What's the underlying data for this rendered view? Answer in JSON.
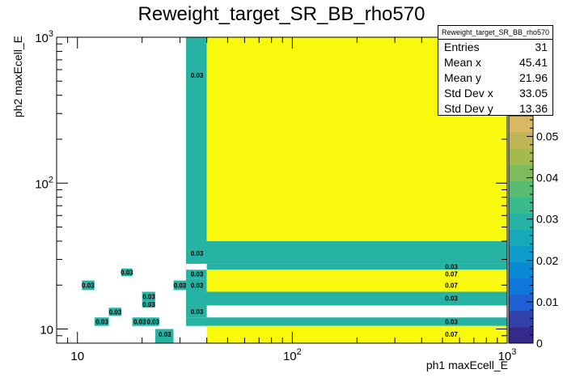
{
  "chart_data": {
    "type": "heatmap",
    "title": "Reweight_target_SR_BB_rho570",
    "xlabel": "ph1 maxEcell_E",
    "ylabel": "ph2 maxEcell_E",
    "x_scale": "log",
    "y_scale": "log",
    "xlim": [
      8,
      1000
    ],
    "ylim": [
      8,
      1000
    ],
    "x_ticks": [
      {
        "v": 10,
        "base": "10",
        "exp": ""
      },
      {
        "v": 100,
        "base": "10",
        "exp": "2"
      },
      {
        "v": 1000,
        "base": "10",
        "exp": "3"
      }
    ],
    "y_ticks": [
      {
        "v": 10,
        "base": "10",
        "exp": ""
      },
      {
        "v": 100,
        "base": "10",
        "exp": "2"
      },
      {
        "v": 1000,
        "base": "10",
        "exp": "3"
      }
    ],
    "zlim": [
      0,
      0.055
    ],
    "palette_ticks": [
      "0",
      "0.01",
      "0.02",
      "0.03",
      "0.04",
      "0.05"
    ],
    "palette_tick_values": [
      0,
      0.01,
      0.02,
      0.03,
      0.04,
      0.05
    ],
    "palette_colors": [
      "#352a87",
      "#3242a9",
      "#2160d3",
      "#0f77db",
      "#0a89d3",
      "#0f9acc",
      "#18a9b8",
      "#27b3a3",
      "#3bbb8c",
      "#5abc71",
      "#7fbb5c",
      "#a3ba51",
      "#c1b55a",
      "#d8b863"
    ],
    "cells": [
      {
        "x": [
          32,
          40
        ],
        "y": [
          40,
          1000
        ],
        "z": 0.03,
        "label": "0.03",
        "lx": 36,
        "ly": 550
      },
      {
        "x": [
          40,
          1000
        ],
        "y": [
          40,
          1000
        ],
        "z": 0.07,
        "label": "",
        "lx": 550,
        "ly": 550
      },
      {
        "x": [
          32,
          1000
        ],
        "y": [
          28,
          40
        ],
        "z": 0.03,
        "label": "0.03",
        "lx": 36,
        "ly": 33
      },
      {
        "x": [
          40,
          1000
        ],
        "y": [
          25.5,
          28
        ],
        "z": 0.03,
        "label": "0.03",
        "lx": 550,
        "ly": 26.7
      },
      {
        "x": [
          32,
          40
        ],
        "y": [
          22,
          25.5
        ],
        "z": 0.03,
        "label": "0.03",
        "lx": 36,
        "ly": 23.8
      },
      {
        "x": [
          40,
          1000
        ],
        "y": [
          22,
          25.5
        ],
        "z": 0.07,
        "label": "0.07",
        "lx": 550,
        "ly": 23.8
      },
      {
        "x": [
          32,
          40
        ],
        "y": [
          18,
          22
        ],
        "z": 0.03,
        "label": "0.03",
        "lx": 36,
        "ly": 20
      },
      {
        "x": [
          40,
          1000
        ],
        "y": [
          18,
          22
        ],
        "z": 0.07,
        "label": "0.07",
        "lx": 550,
        "ly": 20
      },
      {
        "x": [
          32,
          1000
        ],
        "y": [
          14.5,
          18
        ],
        "z": 0.03,
        "label": "0.03",
        "lx": 550,
        "ly": 16.3
      },
      {
        "x": [
          32,
          40
        ],
        "y": [
          12,
          14.5
        ],
        "z": 0.03,
        "label": "0.03",
        "lx": 36,
        "ly": 13.2
      },
      {
        "x": [
          32,
          1000
        ],
        "y": [
          10.5,
          12
        ],
        "z": 0.03,
        "label": "0.03",
        "lx": 550,
        "ly": 11.2
      },
      {
        "x": [
          40,
          1000
        ],
        "y": [
          8,
          10.5
        ],
        "z": 0.07,
        "label": "0.07",
        "lx": 550,
        "ly": 9.2
      },
      {
        "x": [
          16,
          18
        ],
        "y": [
          23,
          26
        ],
        "z": 0.03,
        "label": "0.03",
        "lx": 17,
        "ly": 24.5
      },
      {
        "x": [
          10.5,
          12
        ],
        "y": [
          18.5,
          21.5
        ],
        "z": 0.03,
        "label": "0.03",
        "lx": 11.2,
        "ly": 20
      },
      {
        "x": [
          28,
          32
        ],
        "y": [
          18.5,
          21.5
        ],
        "z": 0.03,
        "label": "0.03",
        "lx": 30,
        "ly": 20
      },
      {
        "x": [
          20,
          23
        ],
        "y": [
          15.5,
          18
        ],
        "z": 0.03,
        "label": "0.03",
        "lx": 21.5,
        "ly": 16.7
      },
      {
        "x": [
          20,
          23
        ],
        "y": [
          14,
          15.5
        ],
        "z": 0.03,
        "label": "0.03",
        "lx": 21.5,
        "ly": 14.8
      },
      {
        "x": [
          14,
          16
        ],
        "y": [
          12.3,
          14
        ],
        "z": 0.03,
        "label": "0.03",
        "lx": 15,
        "ly": 13.1
      },
      {
        "x": [
          12,
          14
        ],
        "y": [
          10.5,
          12
        ],
        "z": 0.03,
        "label": "0.03",
        "lx": 13,
        "ly": 11.2
      },
      {
        "x": [
          18,
          21
        ],
        "y": [
          10.5,
          12
        ],
        "z": 0.03,
        "label": "0.03",
        "lx": 19.5,
        "ly": 11.2
      },
      {
        "x": [
          21,
          24
        ],
        "y": [
          10.5,
          12
        ],
        "z": 0.03,
        "label": "0.03",
        "lx": 22.5,
        "ly": 11.2
      },
      {
        "x": [
          23,
          28
        ],
        "y": [
          8,
          10
        ],
        "z": 0.03,
        "label": "0.03",
        "lx": 25.5,
        "ly": 9.2
      }
    ],
    "stats": {
      "title": "Reweight_target_SR_BB_rho570",
      "rows": [
        {
          "k": "Entries",
          "v": "31"
        },
        {
          "k": "Mean x",
          "v": "45.41"
        },
        {
          "k": "Mean y",
          "v": "21.96"
        },
        {
          "k": "Std Dev x",
          "v": "33.05"
        },
        {
          "k": "Std Dev y",
          "v": "13.36"
        }
      ]
    }
  }
}
